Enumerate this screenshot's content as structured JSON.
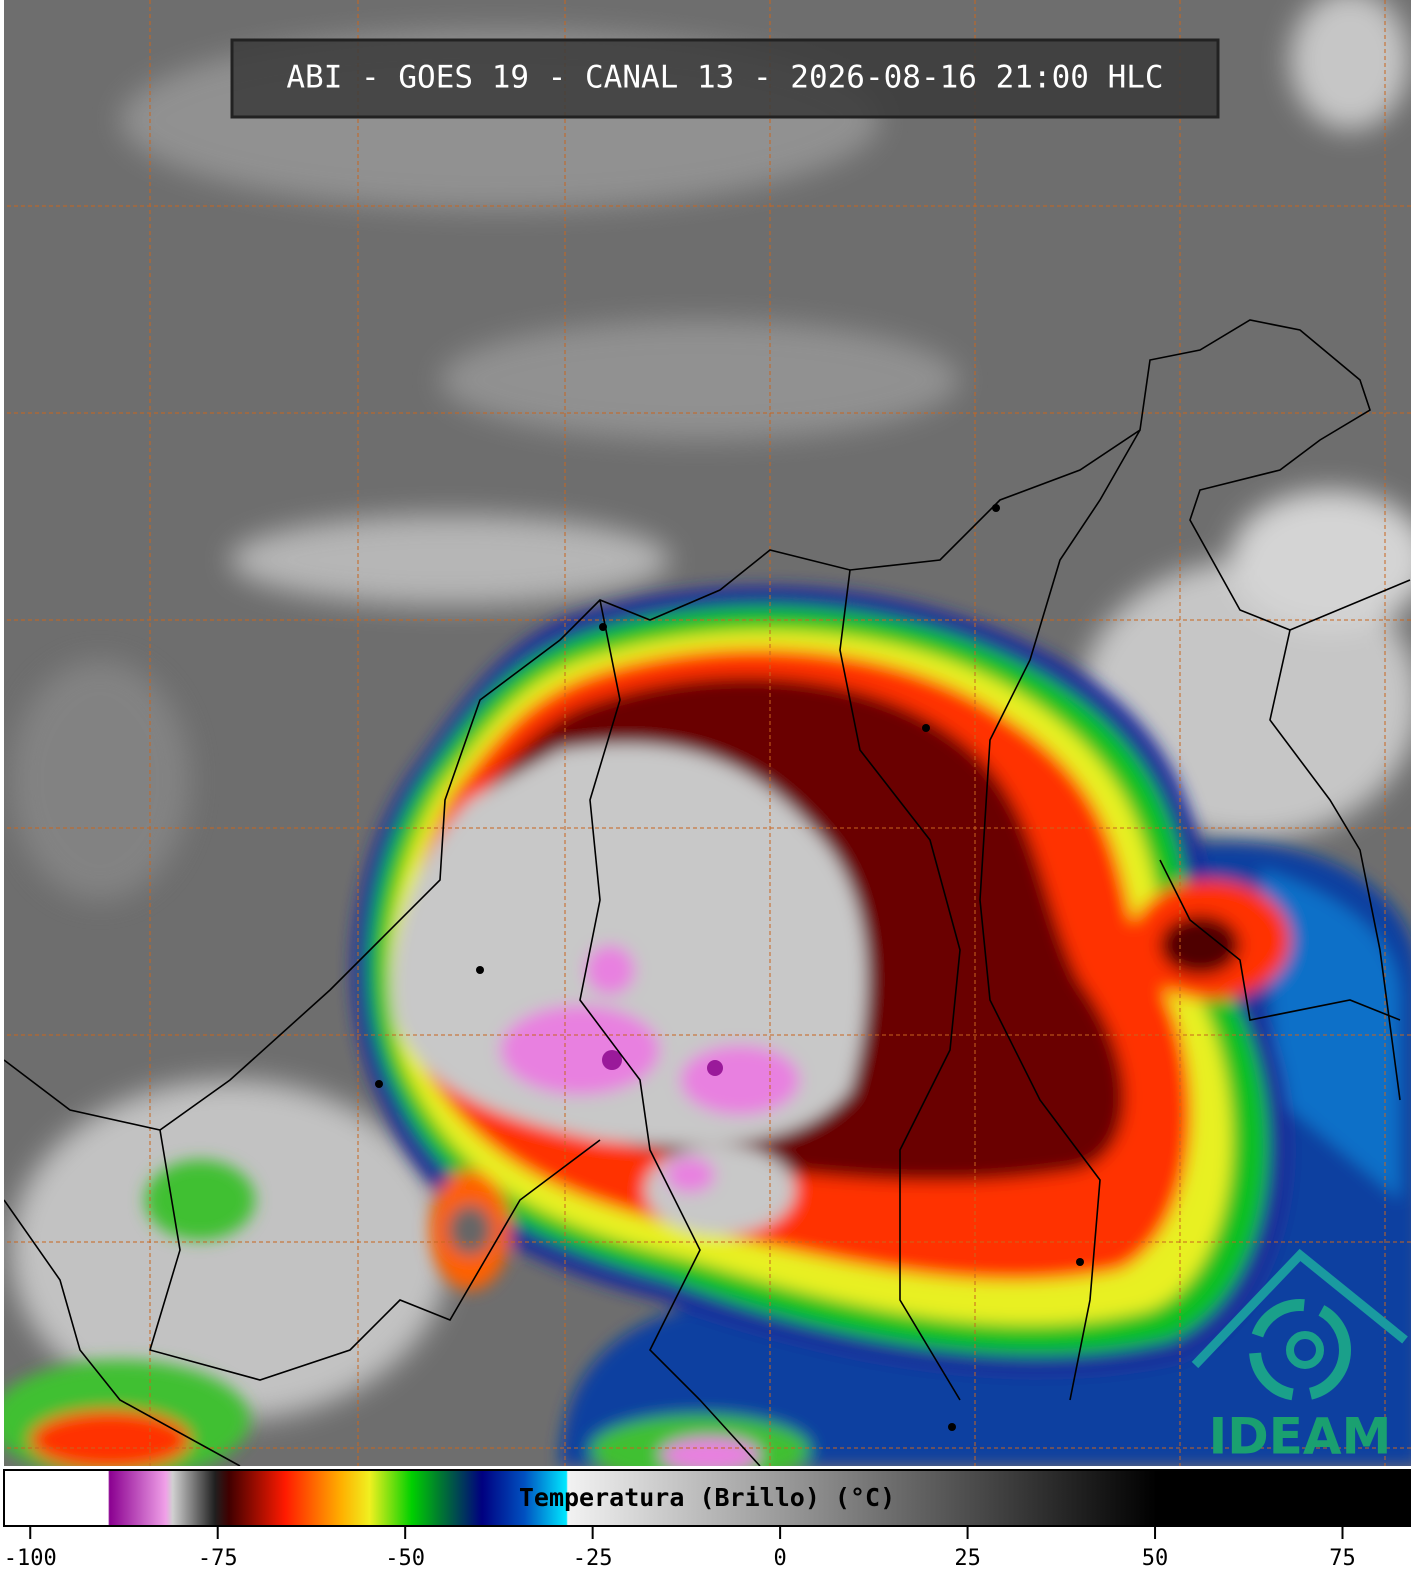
{
  "title": "ABI - GOES 19 - CANAL 13 - 2026-08-16 21:00 HLC",
  "logo": "IDEAM",
  "colorbar": {
    "label": "Temperatura (Brillo) (°C)",
    "lim": [
      -103.5,
      84
    ],
    "ticks": [
      -100,
      -75,
      -50,
      -25,
      0,
      25,
      50,
      75
    ]
  }
}
